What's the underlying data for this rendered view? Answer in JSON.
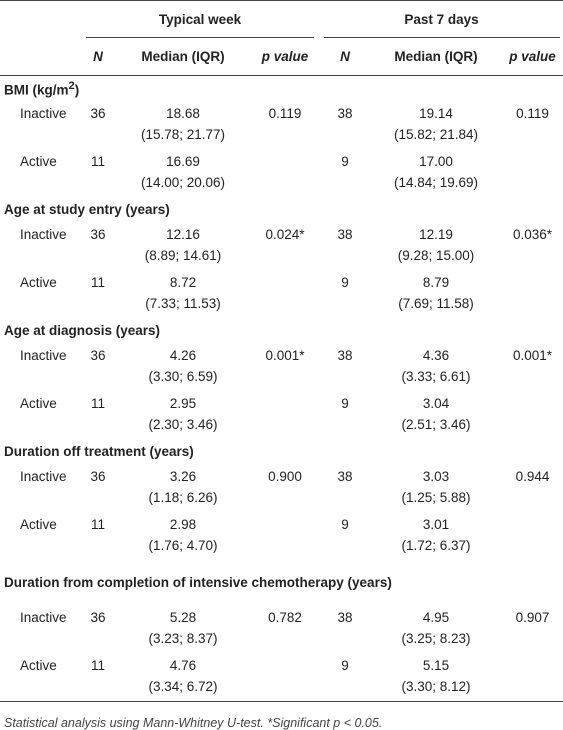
{
  "header": {
    "groups": [
      "Typical week",
      "Past 7 days"
    ],
    "columns": [
      "N",
      "Median (IQR)",
      "p value",
      "N",
      "Median (IQR)",
      "p value"
    ]
  },
  "sections": [
    {
      "title": "BMI (kg/m",
      "title_sup": "2",
      "title_end": ")",
      "rows": [
        {
          "label": "Inactive",
          "typical": {
            "n": "36",
            "median": "18.68",
            "iqr": "(15.78; 21.77)",
            "p": "0.119"
          },
          "past": {
            "n": "38",
            "median": "19.14",
            "iqr": "(15.82; 21.84)",
            "p": "0.119"
          }
        },
        {
          "label": "Active",
          "typical": {
            "n": "11",
            "median": "16.69",
            "iqr": "(14.00; 20.06)"
          },
          "past": {
            "n": "9",
            "median": "17.00",
            "iqr": "(14.84; 19.69)"
          }
        }
      ]
    },
    {
      "title": "Age at study entry (years)",
      "rows": [
        {
          "label": "Inactive",
          "typical": {
            "n": "36",
            "median": "12.16",
            "iqr": "(8.89; 14.61)",
            "p": "0.024*"
          },
          "past": {
            "n": "38",
            "median": "12.19",
            "iqr": "(9.28; 15.00)",
            "p": "0.036*"
          }
        },
        {
          "label": "Active",
          "typical": {
            "n": "11",
            "median": "8.72",
            "iqr": "(7.33; 11.53)"
          },
          "past": {
            "n": "9",
            "median": "8.79",
            "iqr": "(7.69; 11.58)"
          }
        }
      ]
    },
    {
      "title": "Age at diagnosis (years)",
      "rows": [
        {
          "label": "Inactive",
          "typical": {
            "n": "36",
            "median": "4.26",
            "iqr": "(3.30; 6.59)",
            "p": "0.001*"
          },
          "past": {
            "n": "38",
            "median": "4.36",
            "iqr": "(3.33; 6.61)",
            "p": "0.001*"
          }
        },
        {
          "label": "Active",
          "typical": {
            "n": "11",
            "median": "2.95",
            "iqr": "(2.30; 3.46)"
          },
          "past": {
            "n": "9",
            "median": "3.04",
            "iqr": "(2.51; 3.46)"
          }
        }
      ]
    },
    {
      "title": "Duration off treatment (years)",
      "rows": [
        {
          "label": "Inactive",
          "typical": {
            "n": "36",
            "median": "3.26",
            "iqr": "(1.18; 6.26)",
            "p": "0.900"
          },
          "past": {
            "n": "38",
            "median": "3.03",
            "iqr": "(1.25; 5.88)",
            "p": "0.944"
          }
        },
        {
          "label": "Active",
          "typical": {
            "n": "11",
            "median": "2.98",
            "iqr": "(1.76; 4.70)"
          },
          "past": {
            "n": "9",
            "median": "3.01",
            "iqr": "(1.72; 6.37)"
          }
        }
      ]
    },
    {
      "title": "Duration from completion of intensive chemotherapy (years)",
      "rows": [
        {
          "label": "Inactive",
          "typical": {
            "n": "36",
            "median": "5.28",
            "iqr": "(3.23; 8.37)",
            "p": "0.782"
          },
          "past": {
            "n": "38",
            "median": "4.95",
            "iqr": "(3.25; 8.23)",
            "p": "0.907"
          }
        },
        {
          "label": "Active",
          "typical": {
            "n": "11",
            "median": "4.76",
            "iqr": "(3.34; 6.72)"
          },
          "past": {
            "n": "9",
            "median": "5.15",
            "iqr": "(3.30; 8.12)"
          }
        }
      ]
    }
  ],
  "footnote": "Statistical analysis using Mann-Whitney U-test. *Significant p < 0.05."
}
